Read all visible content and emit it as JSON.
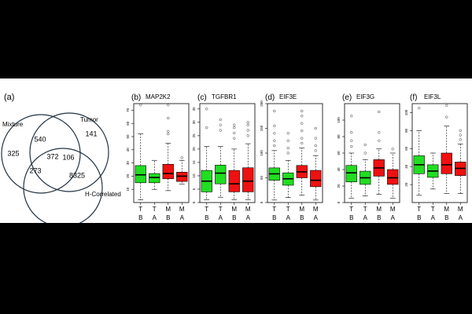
{
  "venn": {
    "label": "(a)",
    "set_labels": [
      "Mixture",
      "Tumor",
      "H-Correlated"
    ],
    "regions": {
      "mixture_only": "325",
      "tumor_only": "141",
      "hcorr_only": "8325",
      "mixture_tumor": "540",
      "tumor_hcorr": "106",
      "mixture_hcorr": "273",
      "all_three": "372"
    }
  },
  "chart_data": [
    {
      "type": "boxplot",
      "label": "(b)",
      "title": "MAP2K2",
      "ylim": [
        0,
        75
      ],
      "yticks": [
        "10",
        "20",
        "30",
        "40",
        "50",
        "60",
        "70"
      ],
      "categories": [
        [
          "T",
          "B"
        ],
        [
          "T",
          "A"
        ],
        [
          "M",
          "B"
        ],
        [
          "M",
          "A"
        ]
      ],
      "boxes": [
        {
          "min": 2,
          "q1": 15,
          "median": 21,
          "q3": 28,
          "max": 52,
          "color": "#22dd22",
          "outliers": [
            74
          ]
        },
        {
          "min": 10,
          "q1": 15,
          "median": 19,
          "q3": 22,
          "max": 32,
          "color": "#22dd22",
          "outliers": []
        },
        {
          "min": 9,
          "q1": 18,
          "median": 22,
          "q3": 29,
          "max": 45,
          "color": "#ee1111",
          "outliers": [
            52,
            54,
            64,
            74
          ]
        },
        {
          "min": 14,
          "q1": 16,
          "median": 20,
          "q3": 23,
          "max": 32,
          "color": "#ee1111",
          "outliers": [
            34
          ]
        }
      ]
    },
    {
      "type": "boxplot",
      "label": "(c)",
      "title": "TGFBR1",
      "ylim": [
        0,
        37
      ],
      "yticks": [
        "0",
        "5",
        "10",
        "15",
        "20",
        "25",
        "30",
        "35"
      ],
      "categories": [
        [
          "T",
          "B"
        ],
        [
          "T",
          "A"
        ],
        [
          "M",
          "B"
        ],
        [
          "M",
          "A"
        ]
      ],
      "boxes": [
        {
          "min": 1,
          "q1": 4,
          "median": 8,
          "q3": 12,
          "max": 21,
          "color": "#22dd22",
          "outliers": [
            28,
            35
          ]
        },
        {
          "min": 2,
          "q1": 7,
          "median": 11,
          "q3": 14,
          "max": 21,
          "color": "#22dd22",
          "outliers": [
            27,
            29,
            31
          ]
        },
        {
          "min": 1,
          "q1": 4,
          "median": 7,
          "q3": 12,
          "max": 20,
          "color": "#ee1111",
          "outliers": [
            24,
            26,
            28,
            29
          ]
        },
        {
          "min": 1,
          "q1": 4,
          "median": 8,
          "q3": 13,
          "max": 22,
          "color": "#ee1111",
          "outliers": [
            25,
            27,
            29,
            30
          ]
        }
      ]
    },
    {
      "type": "boxplot",
      "label": "(d)",
      "title": "EIF3E",
      "ylim": [
        0,
        200
      ],
      "yticks": [
        "0",
        "50",
        "100",
        "150",
        "200"
      ],
      "categories": [
        [
          "T",
          "B"
        ],
        [
          "T",
          "A"
        ],
        [
          "M",
          "B"
        ],
        [
          "M",
          "A"
        ]
      ],
      "boxes": [
        {
          "min": 5,
          "q1": 45,
          "median": 58,
          "q3": 70,
          "max": 105,
          "color": "#22dd22",
          "outliers": [
            115,
            125,
            140,
            155,
            185
          ]
        },
        {
          "min": 10,
          "q1": 35,
          "median": 48,
          "q3": 60,
          "max": 85,
          "color": "#22dd22",
          "outliers": [
            100,
            110,
            125,
            140
          ]
        },
        {
          "min": 15,
          "q1": 50,
          "median": 62,
          "q3": 75,
          "max": 110,
          "color": "#ee1111",
          "outliers": [
            120,
            130,
            145,
            160,
            175,
            185
          ]
        },
        {
          "min": 5,
          "q1": 32,
          "median": 45,
          "q3": 65,
          "max": 95,
          "color": "#ee1111",
          "outliers": [
            105,
            115,
            130,
            150
          ]
        }
      ]
    },
    {
      "type": "boxplot",
      "label": "(e)",
      "title": "EIF3G",
      "ylim": [
        0,
        120
      ],
      "yticks": [
        "0",
        "20",
        "40",
        "60",
        "80",
        "100"
      ],
      "categories": [
        [
          "T",
          "B"
        ],
        [
          "T",
          "A"
        ],
        [
          "M",
          "B"
        ],
        [
          "M",
          "A"
        ]
      ],
      "boxes": [
        {
          "min": 5,
          "q1": 25,
          "median": 36,
          "q3": 45,
          "max": 60,
          "color": "#22dd22",
          "outliers": [
            68,
            75,
            85,
            105
          ]
        },
        {
          "min": 8,
          "q1": 22,
          "median": 30,
          "q3": 38,
          "max": 52,
          "color": "#22dd22",
          "outliers": [
            60,
            70
          ]
        },
        {
          "min": 10,
          "q1": 32,
          "median": 42,
          "q3": 52,
          "max": 65,
          "color": "#ee1111",
          "outliers": [
            75,
            85,
            110
          ]
        },
        {
          "min": 5,
          "q1": 22,
          "median": 30,
          "q3": 40,
          "max": 60,
          "color": "#ee1111",
          "outliers": [
            65
          ]
        }
      ]
    },
    {
      "type": "boxplot",
      "label": "(f)",
      "title": "EIF3L",
      "ylim": [
        0,
        110
      ],
      "yticks": [
        "20",
        "40",
        "60",
        "80",
        "100"
      ],
      "categories": [
        [
          "T",
          "B"
        ],
        [
          "T",
          "A"
        ],
        [
          "M",
          "B"
        ],
        [
          "M",
          "A"
        ]
      ],
      "boxes": [
        {
          "min": 8,
          "q1": 32,
          "median": 42,
          "q3": 52,
          "max": 80,
          "color": "#22dd22",
          "outliers": [
            105
          ]
        },
        {
          "min": 15,
          "q1": 28,
          "median": 35,
          "q3": 42,
          "max": 55,
          "color": "#22dd22",
          "outliers": []
        },
        {
          "min": 10,
          "q1": 32,
          "median": 42,
          "q3": 55,
          "max": 85,
          "color": "#ee1111",
          "outliers": [
            95,
            108
          ]
        },
        {
          "min": 10,
          "q1": 30,
          "median": 38,
          "q3": 45,
          "max": 65,
          "color": "#ee1111",
          "outliers": [
            70,
            75,
            80
          ]
        }
      ]
    }
  ]
}
